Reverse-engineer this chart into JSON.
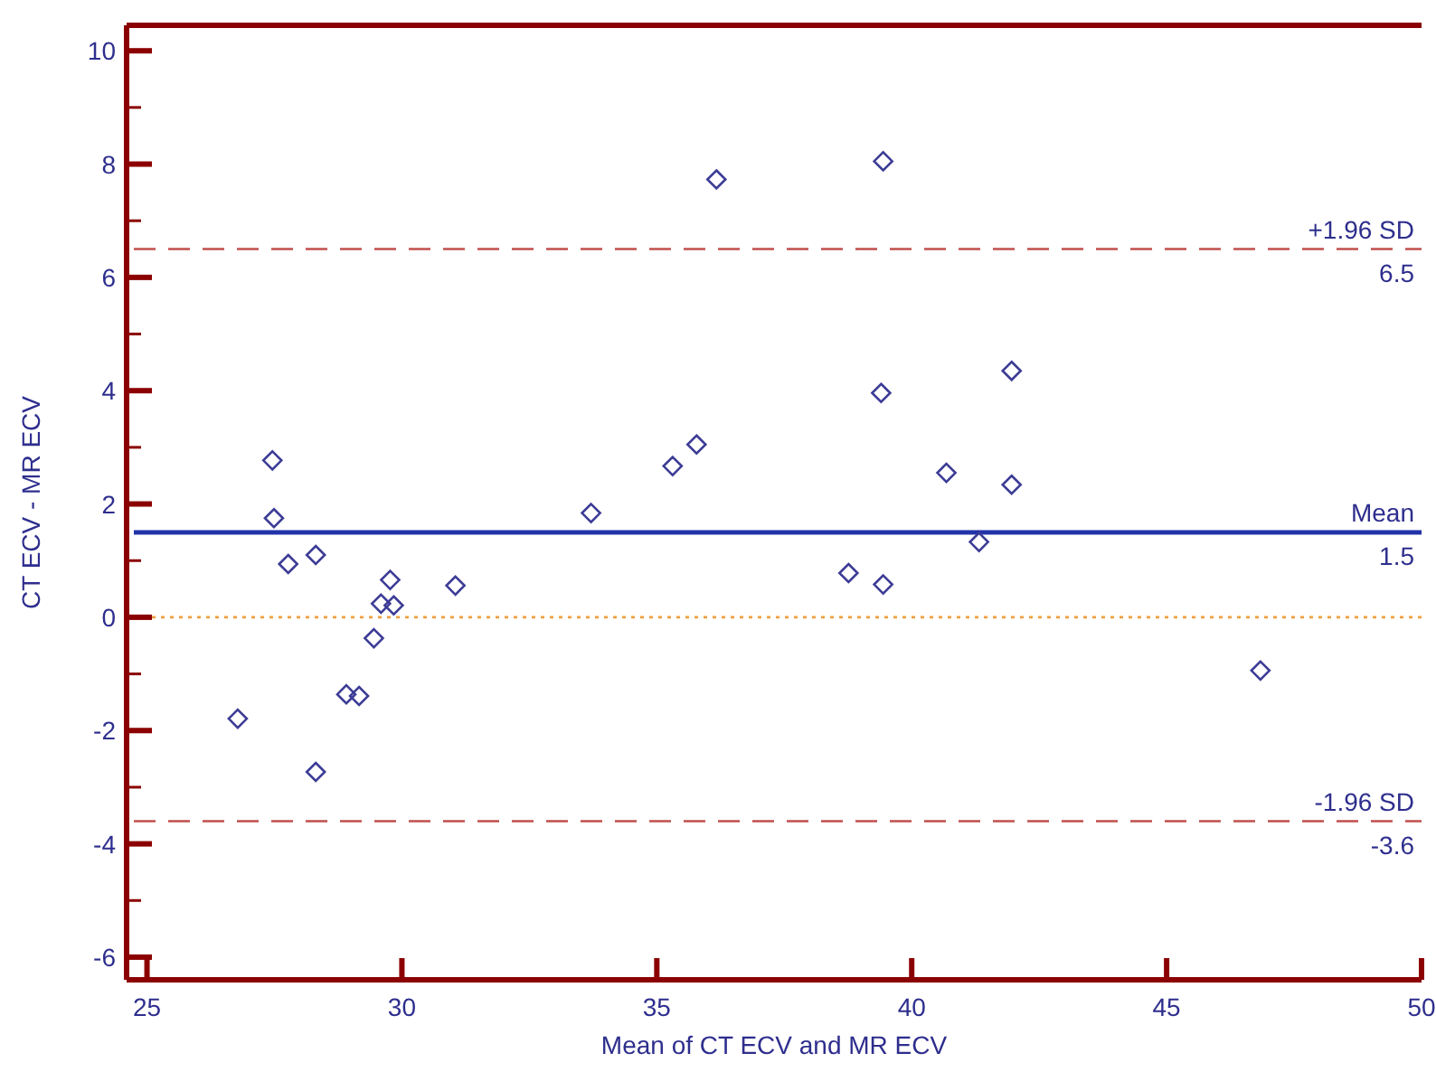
{
  "chart_data": {
    "type": "scatter",
    "xlabel": "Mean of CT ECV and MR ECV",
    "ylabel": "CT ECV - MR ECV",
    "xlim": [
      24.6,
      50
    ],
    "ylim": [
      -6.4,
      10.45
    ],
    "xticks": [
      25,
      30,
      35,
      40,
      45,
      50
    ],
    "yticks": [
      -6,
      {
        "value": -5,
        "label": null
      },
      -4,
      {
        "value": -3,
        "label": null
      },
      -2,
      {
        "value": -1,
        "label": null
      },
      0,
      {
        "value": 1,
        "label": null
      },
      2,
      {
        "value": 3,
        "label": null
      },
      4,
      {
        "value": 5,
        "label": null
      },
      6,
      {
        "value": 7,
        "label": null
      },
      8,
      {
        "value": 9,
        "label": null
      },
      10
    ],
    "grid": false,
    "marker": "diamond",
    "series": [
      {
        "color": "#3c3c96",
        "x": [
          26.78,
          27.46,
          27.49,
          27.77,
          28.31,
          28.31,
          28.91,
          29.16,
          29.45,
          29.59,
          29.77,
          29.84,
          31.05,
          33.71,
          35.31,
          35.78,
          36.17,
          39.44,
          39.4,
          38.76,
          39.44,
          40.68,
          41.32,
          41.96,
          41.96,
          46.84
        ],
        "values": [
          -1.79,
          2.77,
          1.75,
          0.94,
          1.1,
          -2.73,
          -1.36,
          -1.39,
          -0.37,
          0.24,
          0.66,
          0.21,
          0.56,
          1.84,
          2.67,
          3.05,
          7.73,
          8.05,
          3.96,
          0.78,
          0.58,
          2.55,
          1.33,
          4.35,
          2.34,
          -0.94
        ]
      }
    ],
    "ref_lines": [
      {
        "axis": "y",
        "value": 6.5,
        "label": "+1.96 SD",
        "color": "#c0504d",
        "line_style": "dashed"
      },
      {
        "axis": "y",
        "value": 1.5,
        "label": "Mean",
        "color": "#2233aa",
        "line_style": "solid"
      },
      {
        "axis": "y",
        "value": 0,
        "label": null,
        "color": "#f0a040",
        "line_style": "dotted"
      },
      {
        "axis": "y",
        "value": -3.6,
        "label": "-1.96 SD",
        "color": "#c0504d",
        "line_style": "dashed"
      }
    ],
    "annotations": [
      {
        "text": "6.5",
        "y": 6.5
      },
      {
        "text": "1.5",
        "y": 1.5
      },
      {
        "text": "-3.6",
        "y": -3.6
      }
    ]
  }
}
